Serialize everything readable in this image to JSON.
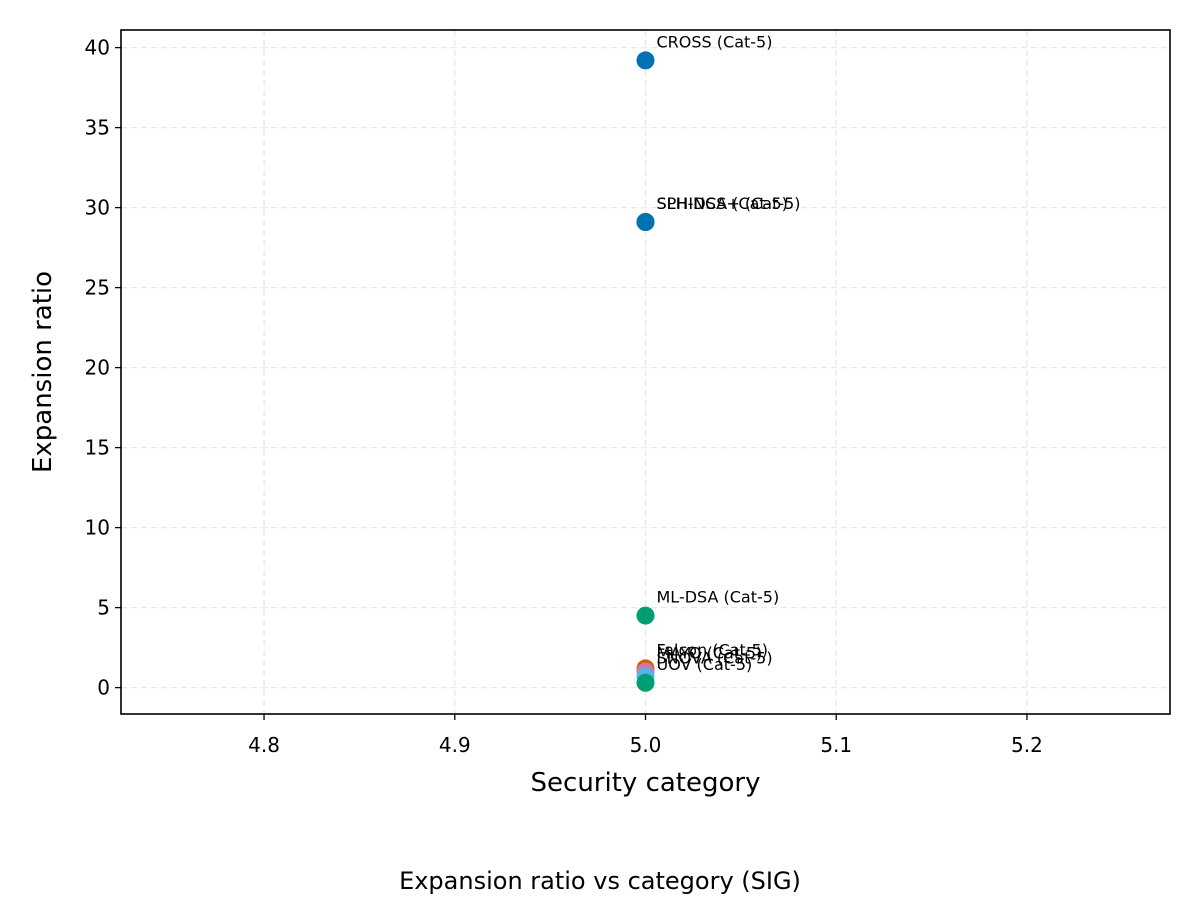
{
  "chart_data": {
    "type": "scatter",
    "title": "",
    "caption": "Expansion ratio vs category (SIG)",
    "xlabel": "Security category",
    "ylabel": "Expansion ratio",
    "xlim": [
      4.725,
      5.275
    ],
    "ylim": [
      -1.65,
      41.1
    ],
    "x_ticks": [
      4.8,
      4.9,
      5.0,
      5.1,
      5.2
    ],
    "x_tick_labels": [
      "4.8",
      "4.9",
      "5.0",
      "5.1",
      "5.2"
    ],
    "y_ticks": [
      0,
      5,
      10,
      15,
      20,
      25,
      30,
      35,
      40
    ],
    "y_tick_labels": [
      "0",
      "5",
      "10",
      "15",
      "20",
      "25",
      "30",
      "35",
      "40"
    ],
    "grid": true,
    "points": [
      {
        "label": "CROSS (Cat-5)",
        "x": 5.0,
        "y": 39.2,
        "color": "#0072b2"
      },
      {
        "label": "SPHINCS+ (Cat-5)",
        "x": 5.0,
        "y": 29.1,
        "color": "#0072b2"
      },
      {
        "label": "SLH-DSA (Cat-5)",
        "x": 5.0,
        "y": 29.1,
        "color": "#0072b2"
      },
      {
        "label": "ML-DSA (Cat-5)",
        "x": 5.0,
        "y": 4.5,
        "color": "#009e73"
      },
      {
        "label": "Falcon (Cat-5)",
        "x": 5.0,
        "y": 1.2,
        "color": "#d55e00"
      },
      {
        "label": "MAYO (Cat-5)",
        "x": 5.0,
        "y": 1.0,
        "color": "#cc79a7"
      },
      {
        "label": "SNOVA (Cat-5)",
        "x": 5.0,
        "y": 0.7,
        "color": "#56b4e9"
      },
      {
        "label": "UOV (Cat-5)",
        "x": 5.0,
        "y": 0.3,
        "color": "#009e73"
      }
    ]
  }
}
